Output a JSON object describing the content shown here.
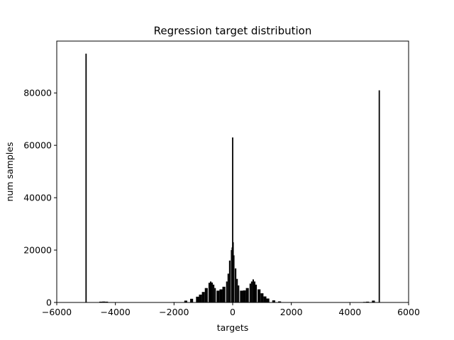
{
  "chart_data": {
    "type": "bar",
    "title": "Regression target distribution",
    "xlabel": "targets",
    "ylabel": "num samples",
    "xlim": [
      -6000,
      6000
    ],
    "ylim": [
      0,
      99800
    ],
    "grid": false,
    "bar_color": "#000000",
    "x_ticks": [
      -6000,
      -4000,
      -2000,
      0,
      2000,
      4000,
      6000
    ],
    "x_tick_labels": [
      "−6000",
      "−4000",
      "−2000",
      "0",
      "2000",
      "4000",
      "6000"
    ],
    "y_ticks": [
      0,
      20000,
      40000,
      60000,
      80000
    ],
    "y_tick_labels": [
      "0",
      "20000",
      "40000",
      "60000",
      "80000"
    ],
    "x": [
      -5000,
      -4500,
      -4400,
      -4300,
      -2000,
      -1600,
      -1400,
      -1200,
      -1100,
      -1000,
      -900,
      -800,
      -750,
      -700,
      -650,
      -600,
      -500,
      -400,
      -300,
      -200,
      -150,
      -100,
      -50,
      -25,
      0,
      25,
      50,
      100,
      150,
      200,
      300,
      400,
      500,
      600,
      650,
      700,
      750,
      800,
      900,
      1000,
      1100,
      1200,
      1400,
      1600,
      2000,
      4500,
      4600,
      4800,
      5000
    ],
    "values": [
      95000,
      300,
      350,
      300,
      150,
      700,
      1400,
      2200,
      3000,
      4000,
      5500,
      7500,
      8000,
      7600,
      6800,
      5500,
      4500,
      5000,
      6000,
      8000,
      11000,
      16000,
      20000,
      21000,
      63000,
      23000,
      18000,
      13000,
      9000,
      6500,
      4500,
      4600,
      5500,
      7200,
      8000,
      8800,
      8000,
      6800,
      5000,
      3500,
      2300,
      1500,
      800,
      400,
      100,
      200,
      300,
      700,
      81000
    ]
  }
}
